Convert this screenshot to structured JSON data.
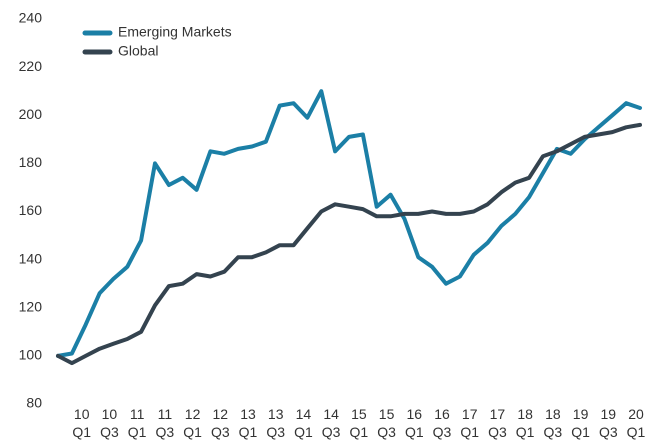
{
  "chart_data": {
    "type": "line",
    "categories": [
      null,
      null,
      "10 Q1",
      null,
      "10 Q3",
      null,
      "11 Q1",
      null,
      "11 Q3",
      null,
      "12 Q1",
      null,
      "12 Q3",
      null,
      "13 Q1",
      null,
      "13 Q3",
      null,
      "14 Q1",
      null,
      "14 Q3",
      null,
      "15 Q1",
      null,
      "15 Q3",
      null,
      "16 Q1",
      null,
      "16 Q3",
      null,
      "17 Q1",
      null,
      "17 Q3",
      null,
      "18 Q1",
      null,
      "18 Q3",
      null,
      "19 Q1",
      null,
      "19 Q3",
      null,
      "20 Q1"
    ],
    "series": [
      {
        "name": "Emerging Markets",
        "color": "#1b7fa6",
        "values": [
          100,
          101,
          113,
          126,
          132,
          137,
          148,
          180,
          171,
          174,
          169,
          185,
          184,
          186,
          187,
          189,
          204,
          205,
          199,
          210,
          185,
          191,
          192,
          162,
          167,
          157,
          141,
          137,
          130,
          133,
          142,
          147,
          154,
          159,
          166,
          176,
          186,
          184,
          190,
          195,
          200,
          205,
          203
        ]
      },
      {
        "name": "Global",
        "color": "#34434f",
        "values": [
          100,
          97,
          100,
          103,
          105,
          107,
          110,
          121,
          129,
          130,
          134,
          133,
          135,
          141,
          141,
          143,
          146,
          146,
          153,
          160,
          163,
          162,
          161,
          158,
          158,
          159,
          159,
          160,
          159,
          159,
          160,
          163,
          168,
          172,
          174,
          183,
          185,
          188,
          191,
          192,
          193,
          195,
          196
        ]
      }
    ],
    "ylim": [
      80,
      240
    ],
    "yticks": [
      80,
      100,
      120,
      140,
      160,
      180,
      200,
      220,
      240
    ],
    "grid": false,
    "legend": "upper-left"
  }
}
